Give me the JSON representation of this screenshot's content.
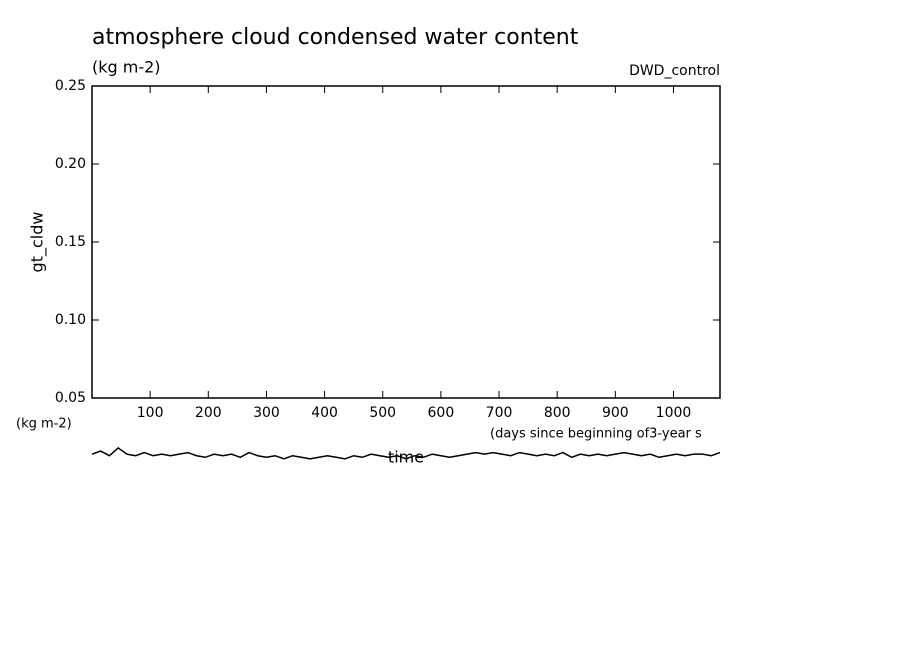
{
  "chart_data": {
    "type": "line",
    "title": "atmosphere cloud condensed water content",
    "subtitle": "(kg m-2)",
    "annotation": "DWD_control",
    "ylabel": "gt_cldw",
    "y_unit_label": "(kg m-2)",
    "x_unit_label": "(days since beginning of3-year s",
    "xlabel": "time",
    "xlim": [
      0,
      1080
    ],
    "ylim": [
      0.05,
      0.25
    ],
    "xticks": [
      100,
      200,
      300,
      400,
      500,
      600,
      700,
      800,
      900,
      1000
    ],
    "yticks": [
      0.05,
      {
        "value": 0.1,
        "label": "0.10"
      },
      0.15,
      {
        "value": 0.2,
        "label": "0.20"
      },
      0.25
    ],
    "x": [
      0,
      15,
      30,
      45,
      60,
      75,
      90,
      105,
      120,
      135,
      150,
      165,
      180,
      195,
      210,
      225,
      240,
      255,
      270,
      285,
      300,
      315,
      330,
      345,
      360,
      375,
      390,
      405,
      420,
      435,
      450,
      465,
      480,
      495,
      510,
      525,
      540,
      555,
      570,
      585,
      600,
      615,
      630,
      645,
      660,
      675,
      690,
      705,
      720,
      735,
      750,
      765,
      780,
      795,
      810,
      825,
      840,
      855,
      870,
      885,
      900,
      915,
      930,
      945,
      960,
      975,
      990,
      1005,
      1020,
      1035,
      1050,
      1065,
      1080
    ],
    "series": [
      {
        "color": "#000000",
        "values": [
          0.014,
          0.016,
          0.013,
          0.018,
          0.014,
          0.013,
          0.015,
          0.013,
          0.014,
          0.013,
          0.014,
          0.015,
          0.013,
          0.012,
          0.014,
          0.013,
          0.014,
          0.012,
          0.015,
          0.013,
          0.012,
          0.013,
          0.011,
          0.013,
          0.012,
          0.011,
          0.012,
          0.013,
          0.012,
          0.011,
          0.013,
          0.012,
          0.014,
          0.013,
          0.012,
          0.013,
          0.011,
          0.013,
          0.012,
          0.014,
          0.013,
          0.012,
          0.013,
          0.014,
          0.015,
          0.014,
          0.015,
          0.014,
          0.013,
          0.015,
          0.014,
          0.013,
          0.014,
          0.013,
          0.015,
          0.012,
          0.014,
          0.013,
          0.014,
          0.013,
          0.014,
          0.015,
          0.014,
          0.013,
          0.014,
          0.012,
          0.013,
          0.014,
          0.013,
          0.014,
          0.014,
          0.013,
          0.015
        ]
      }
    ]
  }
}
